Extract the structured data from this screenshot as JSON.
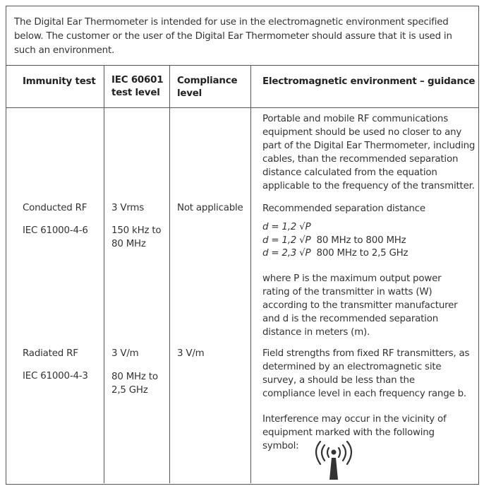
{
  "intro": [
    "The Digital Ear Thermometer is intended for use in the electromagnetic environment specified",
    "below. The customer or the user of the Digital Ear Thermometer should assure that it is used in",
    "such an environment."
  ],
  "headers": {
    "immunity": "Immunity test",
    "iec": [
      "IEC 60601",
      "test level"
    ],
    "compliance": [
      "Compliance",
      "level"
    ],
    "guidance": "Electromagnetic environment – guidance"
  },
  "rows": [
    {
      "test": "Conducted RF",
      "standard": "IEC 61000-4-6",
      "level": "3 Vrms",
      "range": [
        "150 kHz to",
        "80 MHz"
      ],
      "compliance": "Not applicable"
    },
    {
      "test": "Radiated RF",
      "standard": "IEC 61000-4-3",
      "level": "3 V/m",
      "range": [
        "80 MHz to",
        "2,5 GHz"
      ],
      "compliance": "3 V/m"
    }
  ],
  "guidance": {
    "para1": [
      "Portable and mobile RF communications",
      "equipment should be used no closer to any",
      "part of the Digital Ear Thermometer, including",
      "cables, than the recommended separation",
      "distance calculated from the equation",
      "applicable to the frequency of the transmitter."
    ],
    "recommended": "Recommended separation distance",
    "formulas": [
      {
        "eq": "d = 1,2 √P",
        "range": ""
      },
      {
        "eq": "d = 1,2 √P",
        "range": "80 MHz to 800 MHz"
      },
      {
        "eq": "d = 2,3 √P",
        "range": "800 MHz to 2,5 GHz"
      }
    ],
    "para2": [
      "where P is the maximum output power",
      "rating of the transmitter in watts (W)",
      "according to the transmitter manufacturer",
      "and d is the recommended separation",
      "distance in meters (m)."
    ],
    "para3": [
      "Field strengths from fixed RF transmitters, as",
      "determined by an electromagnetic site",
      "survey, a should be less than the",
      "compliance level in each frequency range b."
    ],
    "para4": [
      "Interference may occur in the vicinity of",
      "equipment marked with the following",
      "symbol:"
    ]
  },
  "icons": {
    "symbol": "non-ionizing-radiation-icon"
  }
}
